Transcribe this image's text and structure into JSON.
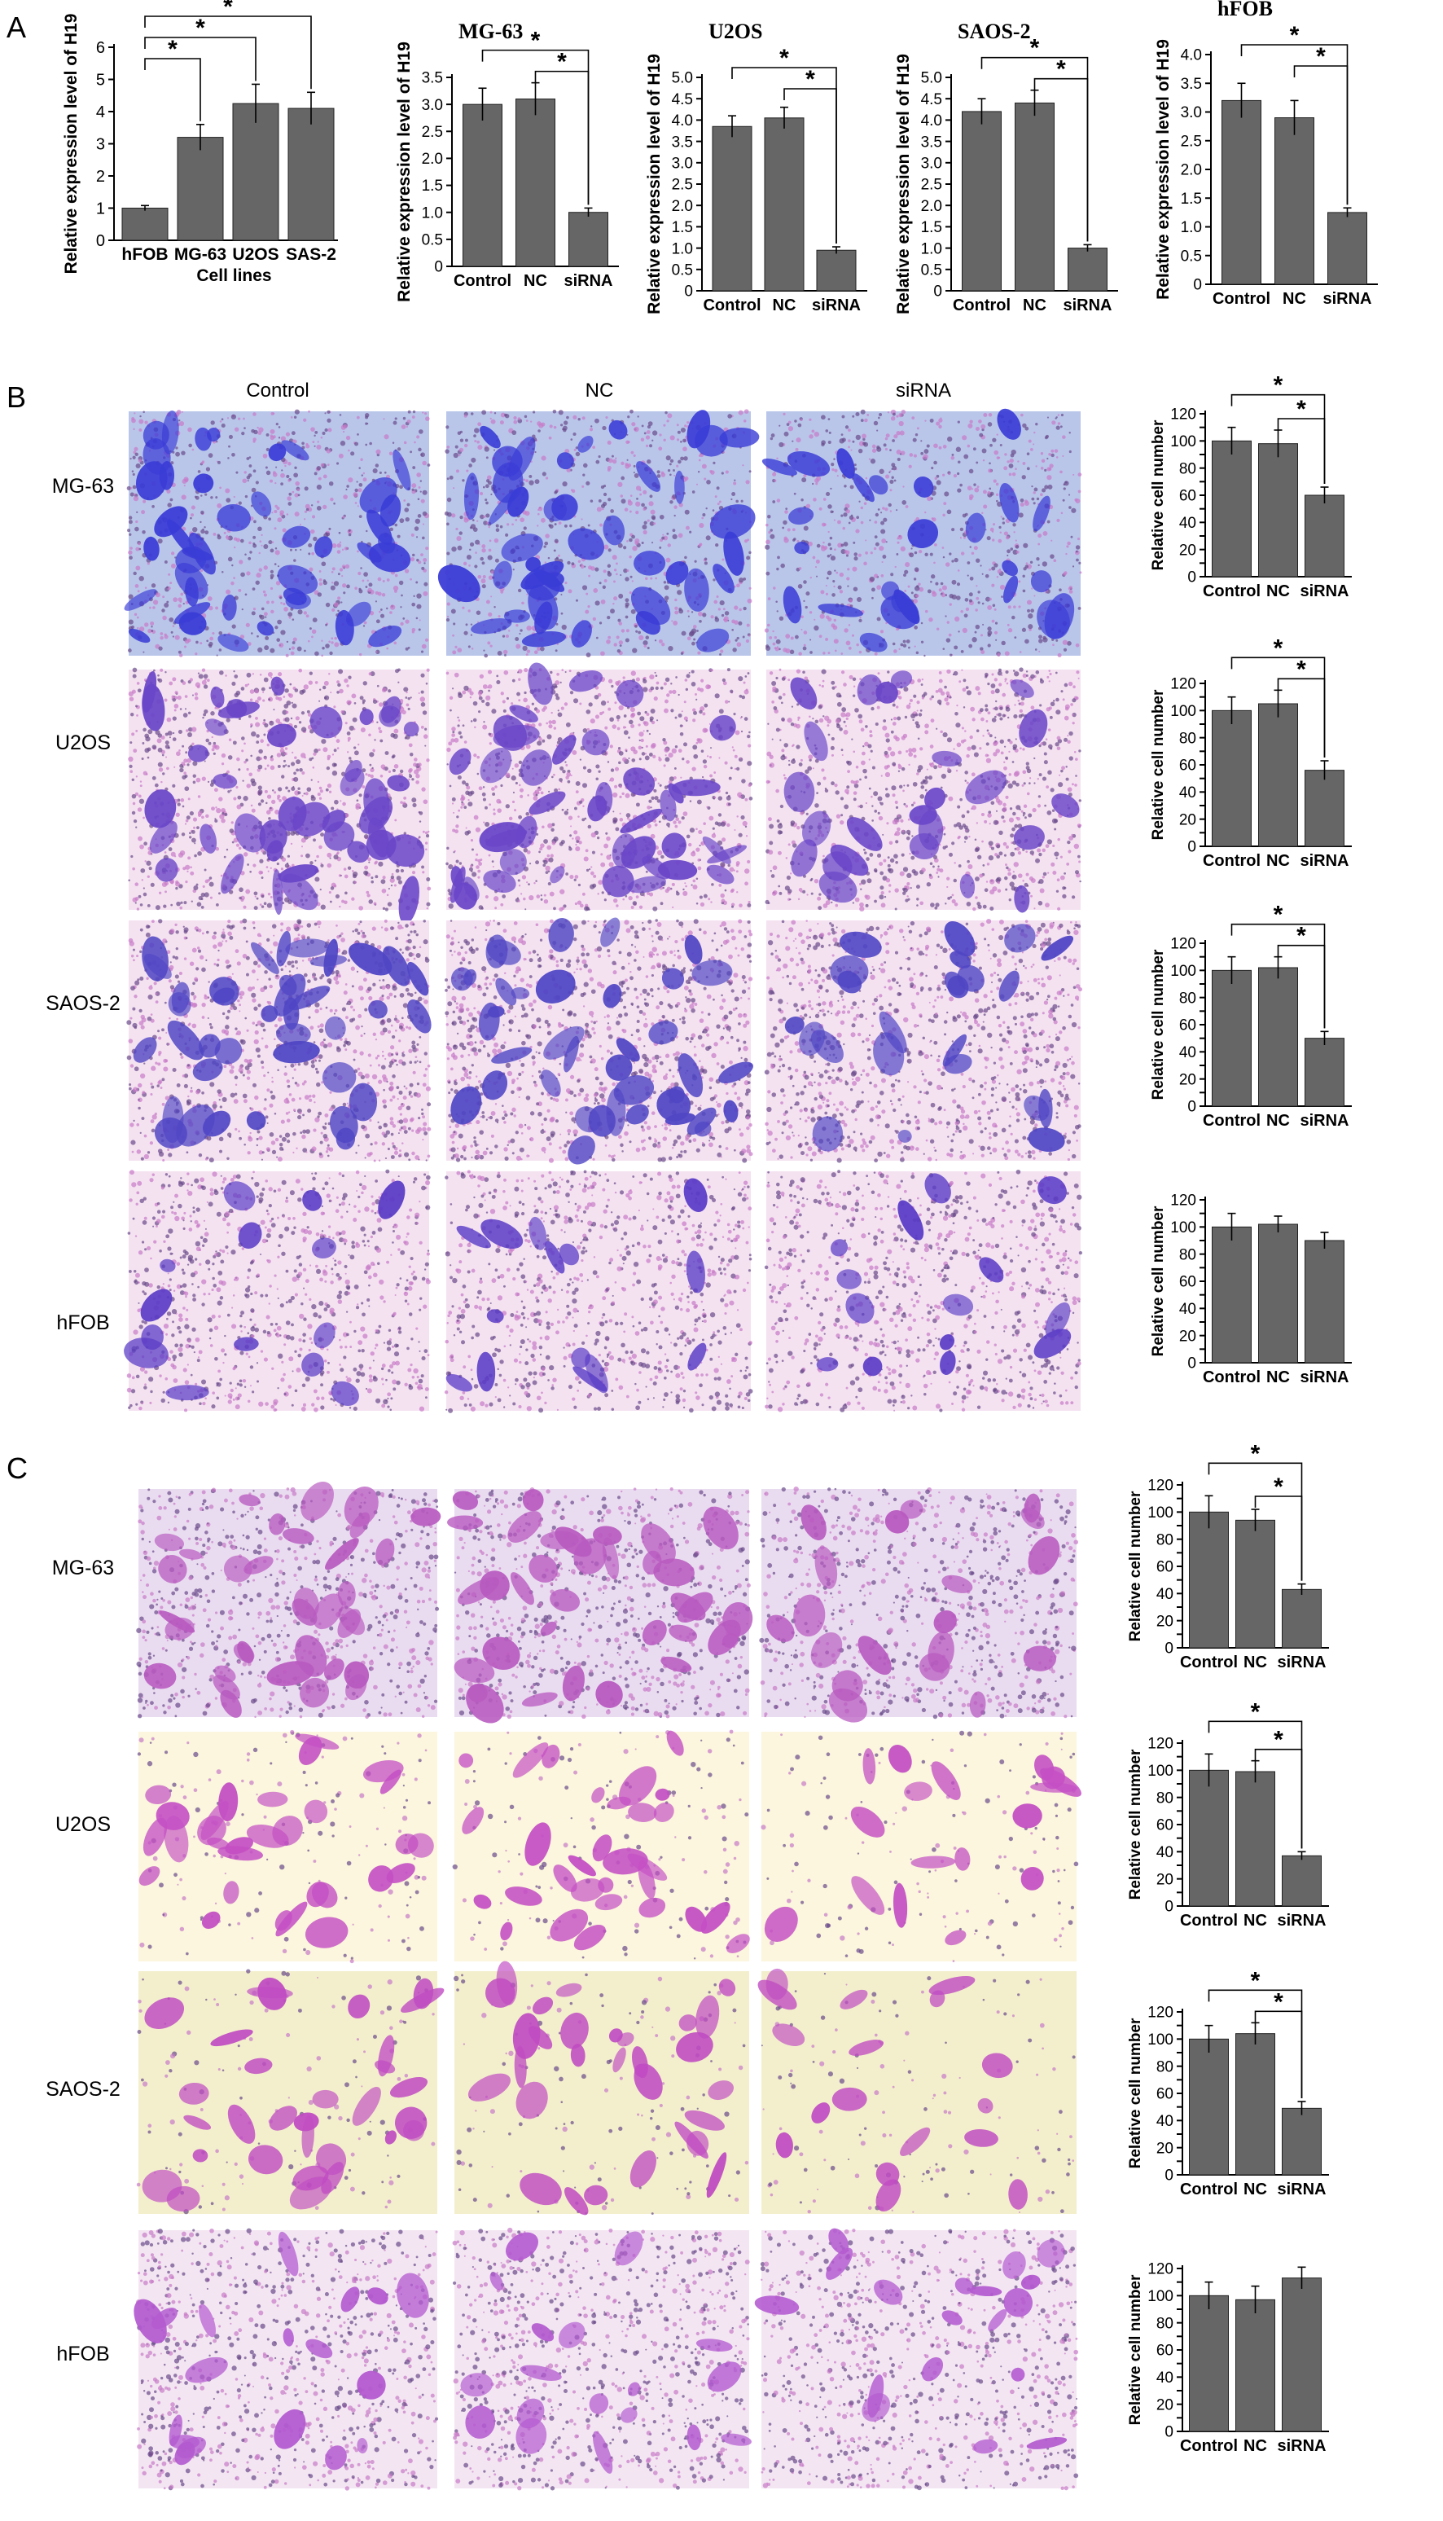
{
  "figure": {
    "panels": [
      {
        "letter": "A"
      },
      {
        "letter": "B",
        "column_headers": [
          "Control",
          "NC",
          "siRNA"
        ],
        "row_labels": [
          "MG-63",
          "U2OS",
          "SAOS-2",
          "hFOB"
        ]
      },
      {
        "letter": "C",
        "row_labels": [
          "MG-63",
          "U2OS",
          "SAOS-2",
          "hFOB"
        ]
      }
    ]
  },
  "micrographs": {
    "purple": "#b85ac0",
    "blue": "#3a3cd6",
    "pale_pink": "#f4e2f1",
    "cream": "#fbf6dd"
  },
  "chart_data": [
    {
      "id": "A1",
      "type": "bar",
      "title": "",
      "categories": [
        "hFOB",
        "MG-63",
        "U2OS",
        "SAS-2"
      ],
      "values": [
        1.0,
        3.2,
        4.25,
        4.1
      ],
      "errors": [
        0.08,
        0.4,
        0.6,
        0.5
      ],
      "xlabel": "Cell lines",
      "ylabel": "Relative expression level of H19",
      "ylim": [
        0,
        6
      ],
      "yticks": [
        0,
        1,
        2,
        3,
        4,
        5,
        6
      ],
      "ytick_labels": [
        "0",
        "1",
        "2",
        "3",
        "4",
        "5",
        "6"
      ],
      "annotations": [
        {
          "from": 0,
          "to": 1,
          "label": "*"
        },
        {
          "from": 0,
          "to": 2,
          "label": "*"
        },
        {
          "from": 0,
          "to": 3,
          "label": "*"
        }
      ]
    },
    {
      "id": "A2",
      "type": "bar",
      "title": "MG-63",
      "categories": [
        "Control",
        "NC",
        "siRNA"
      ],
      "values": [
        3.0,
        3.1,
        1.0
      ],
      "errors": [
        0.3,
        0.3,
        0.08
      ],
      "xlabel": "",
      "ylabel": "Relative expression level of H19",
      "ylim": [
        0,
        3.5
      ],
      "yticks": [
        0,
        0.5,
        1,
        1.5,
        2,
        2.5,
        3,
        3.5
      ],
      "ytick_labels": [
        "0",
        "0.5",
        "1.0",
        "1.5",
        "2.0",
        "2.5",
        "3.0",
        "3.5"
      ],
      "annotations": [
        {
          "from": 1,
          "to": 2,
          "label": "*"
        },
        {
          "from": 0,
          "to": 2,
          "label": "*"
        }
      ]
    },
    {
      "id": "A3",
      "type": "bar",
      "title": "U2OS",
      "categories": [
        "Control",
        "NC",
        "siRNA"
      ],
      "values": [
        3.85,
        4.05,
        0.95
      ],
      "errors": [
        0.25,
        0.25,
        0.08
      ],
      "xlabel": "",
      "ylabel": "Relative expression level of H19",
      "ylim": [
        0,
        5
      ],
      "yticks": [
        0,
        0.5,
        1,
        1.5,
        2,
        2.5,
        3,
        3.5,
        4,
        4.5,
        5
      ],
      "ytick_labels": [
        "0",
        "0.5",
        "1.0",
        "1.5",
        "2.0",
        "2.5",
        "3.0",
        "3.5",
        "4.0",
        "4.5",
        "5.0"
      ],
      "annotations": [
        {
          "from": 1,
          "to": 2,
          "label": "*"
        },
        {
          "from": 0,
          "to": 2,
          "label": "*"
        }
      ]
    },
    {
      "id": "A4",
      "type": "bar",
      "title": "SAOS-2",
      "categories": [
        "Control",
        "NC",
        "siRNA"
      ],
      "values": [
        4.2,
        4.4,
        1.0
      ],
      "errors": [
        0.3,
        0.3,
        0.08
      ],
      "xlabel": "",
      "ylabel": "Relative expression level of H19",
      "ylim": [
        0,
        5
      ],
      "yticks": [
        0,
        0.5,
        1,
        1.5,
        2,
        2.5,
        3,
        3.5,
        4,
        4.5,
        5
      ],
      "ytick_labels": [
        "0",
        "0.5",
        "1.0",
        "1.5",
        "2.0",
        "2.5",
        "3.0",
        "3.5",
        "4.0",
        "4.5",
        "5.0"
      ],
      "annotations": [
        {
          "from": 1,
          "to": 2,
          "label": "*"
        },
        {
          "from": 0,
          "to": 2,
          "label": "*"
        }
      ]
    },
    {
      "id": "A5",
      "type": "bar",
      "title": "hFOB",
      "categories": [
        "Control",
        "NC",
        "siRNA"
      ],
      "values": [
        3.2,
        2.9,
        1.25
      ],
      "errors": [
        0.3,
        0.3,
        0.08
      ],
      "xlabel": "",
      "ylabel": "Relative expression level of H19",
      "ylim": [
        0,
        4
      ],
      "yticks": [
        0,
        0.5,
        1,
        1.5,
        2,
        2.5,
        3,
        3.5,
        4
      ],
      "ytick_labels": [
        "0",
        "0.5",
        "1.0",
        "1.5",
        "2.0",
        "2.5",
        "3.0",
        "3.5",
        "4.0"
      ],
      "annotations": [
        {
          "from": 1,
          "to": 2,
          "label": "*"
        },
        {
          "from": 0,
          "to": 2,
          "label": "*"
        }
      ]
    },
    {
      "id": "B1",
      "type": "bar",
      "title": "",
      "categories": [
        "Control",
        "NC",
        "siRNA"
      ],
      "values": [
        100,
        98,
        60
      ],
      "errors": [
        10,
        10,
        6
      ],
      "xlabel": "",
      "ylabel": "Relative cell number",
      "ylim": [
        0,
        120
      ],
      "yticks": [
        0,
        10,
        20,
        30,
        40,
        50,
        60,
        70,
        80,
        90,
        100,
        110,
        120
      ],
      "ytick_labels": [
        "0",
        "",
        "20",
        "",
        "40",
        "",
        "60",
        "",
        "80",
        "",
        "100",
        "",
        "120"
      ],
      "annotations": [
        {
          "from": 1,
          "to": 2,
          "label": "*"
        },
        {
          "from": 0,
          "to": 2,
          "label": "*"
        }
      ]
    },
    {
      "id": "B2",
      "type": "bar",
      "title": "",
      "categories": [
        "Control",
        "NC",
        "siRNA"
      ],
      "values": [
        100,
        105,
        56
      ],
      "errors": [
        10,
        10,
        7
      ],
      "xlabel": "",
      "ylabel": "Relative cell number",
      "ylim": [
        0,
        120
      ],
      "yticks": [
        0,
        10,
        20,
        30,
        40,
        50,
        60,
        70,
        80,
        90,
        100,
        110,
        120
      ],
      "ytick_labels": [
        "0",
        "",
        "20",
        "",
        "40",
        "",
        "60",
        "",
        "80",
        "",
        "100",
        "",
        "120"
      ],
      "annotations": [
        {
          "from": 1,
          "to": 2,
          "label": "*"
        },
        {
          "from": 0,
          "to": 2,
          "label": "*"
        }
      ]
    },
    {
      "id": "B3",
      "type": "bar",
      "title": "",
      "categories": [
        "Control",
        "NC",
        "siRNA"
      ],
      "values": [
        100,
        102,
        50
      ],
      "errors": [
        10,
        8,
        5
      ],
      "xlabel": "",
      "ylabel": "Relative cell number",
      "ylim": [
        0,
        120
      ],
      "yticks": [
        0,
        10,
        20,
        30,
        40,
        50,
        60,
        70,
        80,
        90,
        100,
        110,
        120
      ],
      "ytick_labels": [
        "0",
        "",
        "20",
        "",
        "40",
        "",
        "60",
        "",
        "80",
        "",
        "100",
        "",
        "120"
      ],
      "annotations": [
        {
          "from": 1,
          "to": 2,
          "label": "*"
        },
        {
          "from": 0,
          "to": 2,
          "label": "*"
        }
      ]
    },
    {
      "id": "B4",
      "type": "bar",
      "title": "",
      "categories": [
        "Control",
        "NC",
        "siRNA"
      ],
      "values": [
        100,
        102,
        90
      ],
      "errors": [
        10,
        6,
        6
      ],
      "xlabel": "",
      "ylabel": "Relative cell number",
      "ylim": [
        0,
        120
      ],
      "yticks": [
        0,
        10,
        20,
        30,
        40,
        50,
        60,
        70,
        80,
        90,
        100,
        110,
        120
      ],
      "ytick_labels": [
        "0",
        "",
        "20",
        "",
        "40",
        "",
        "60",
        "",
        "80",
        "",
        "100",
        "",
        "120"
      ],
      "annotations": []
    },
    {
      "id": "C1",
      "type": "bar",
      "title": "",
      "categories": [
        "Control",
        "NC",
        "siRNA"
      ],
      "values": [
        100,
        94,
        43
      ],
      "errors": [
        12,
        8,
        4
      ],
      "xlabel": "",
      "ylabel": "Relative cell number",
      "ylim": [
        0,
        120
      ],
      "yticks": [
        0,
        10,
        20,
        30,
        40,
        50,
        60,
        70,
        80,
        90,
        100,
        110,
        120
      ],
      "ytick_labels": [
        "0",
        "",
        "20",
        "",
        "40",
        "",
        "60",
        "",
        "80",
        "",
        "100",
        "",
        "120"
      ],
      "annotations": [
        {
          "from": 1,
          "to": 2,
          "label": "*"
        },
        {
          "from": 0,
          "to": 2,
          "label": "*"
        }
      ]
    },
    {
      "id": "C2",
      "type": "bar",
      "title": "",
      "categories": [
        "Control",
        "NC",
        "siRNA"
      ],
      "values": [
        100,
        99,
        37
      ],
      "errors": [
        12,
        8,
        3
      ],
      "xlabel": "",
      "ylabel": "Relative cell number",
      "ylim": [
        0,
        120
      ],
      "yticks": [
        0,
        10,
        20,
        30,
        40,
        50,
        60,
        70,
        80,
        90,
        100,
        110,
        120
      ],
      "ytick_labels": [
        "0",
        "",
        "20",
        "",
        "40",
        "",
        "60",
        "",
        "80",
        "",
        "100",
        "",
        "120"
      ],
      "annotations": [
        {
          "from": 1,
          "to": 2,
          "label": "*"
        },
        {
          "from": 0,
          "to": 2,
          "label": "*"
        }
      ]
    },
    {
      "id": "C3",
      "type": "bar",
      "title": "",
      "categories": [
        "Control",
        "NC",
        "siRNA"
      ],
      "values": [
        100,
        104,
        49
      ],
      "errors": [
        10,
        8,
        5
      ],
      "xlabel": "",
      "ylabel": "Relative cell number",
      "ylim": [
        0,
        120
      ],
      "yticks": [
        0,
        10,
        20,
        30,
        40,
        50,
        60,
        70,
        80,
        90,
        100,
        110,
        120
      ],
      "ytick_labels": [
        "0",
        "",
        "20",
        "",
        "40",
        "",
        "60",
        "",
        "80",
        "",
        "100",
        "",
        "120"
      ],
      "annotations": [
        {
          "from": 1,
          "to": 2,
          "label": "*"
        },
        {
          "from": 0,
          "to": 2,
          "label": "*"
        }
      ]
    },
    {
      "id": "C4",
      "type": "bar",
      "title": "",
      "categories": [
        "Control",
        "NC",
        "siRNA"
      ],
      "values": [
        100,
        97,
        113
      ],
      "errors": [
        10,
        10,
        8
      ],
      "xlabel": "",
      "ylabel": "Relative cell number",
      "ylim": [
        0,
        120
      ],
      "yticks": [
        0,
        10,
        20,
        30,
        40,
        50,
        60,
        70,
        80,
        90,
        100,
        110,
        120
      ],
      "ytick_labels": [
        "0",
        "",
        "20",
        "",
        "40",
        "",
        "60",
        "",
        "80",
        "",
        "100",
        "",
        "120"
      ],
      "annotations": []
    }
  ]
}
